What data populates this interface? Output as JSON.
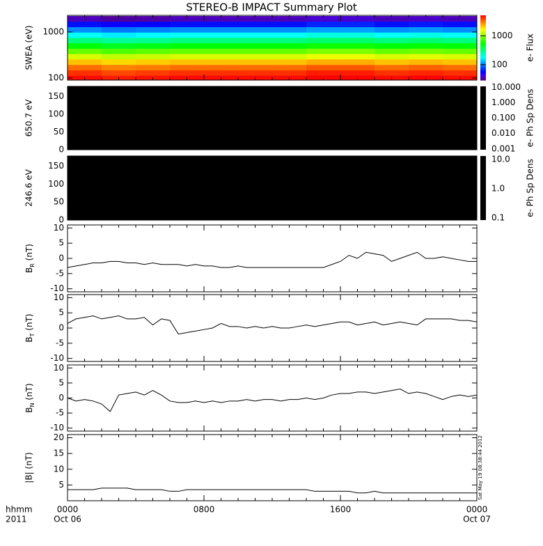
{
  "chart_data": {
    "type": "multi-panel",
    "title": "STEREO-B IMPACT Summary Plot",
    "corner_labels": [
      "hhmm",
      "2011"
    ],
    "timestamp": "Sat May 19 08:38:44 2012",
    "xlim": [
      0,
      24
    ],
    "xticks": [
      {
        "value": 0,
        "label": "0000"
      },
      {
        "value": 8,
        "label": "0800"
      },
      {
        "value": 16,
        "label": "1600"
      },
      {
        "value": 24,
        "label": "0000"
      }
    ],
    "date_labels": [
      {
        "value": 0,
        "label": "Oct 06"
      },
      {
        "value": 24,
        "label": "Oct 07"
      }
    ],
    "x": [
      0,
      0.5,
      1,
      1.5,
      2,
      2.5,
      3,
      3.5,
      4,
      4.5,
      5,
      5.5,
      6,
      6.5,
      7,
      7.5,
      8,
      8.5,
      9,
      9.5,
      10,
      10.5,
      11,
      11.5,
      12,
      12.5,
      13,
      13.5,
      14,
      14.5,
      15,
      15.5,
      16,
      16.5,
      17,
      17.5,
      18,
      18.5,
      19,
      19.5,
      20,
      20.5,
      21,
      21.5,
      22,
      22.5,
      23,
      23.5,
      24
    ],
    "panels": [
      {
        "type": "spectrogram",
        "ylabel": "SWEA (eV)",
        "ylog": true,
        "ylim": [
          90,
          2300
        ],
        "yticks": [
          100,
          1000
        ],
        "colormap": "rainbow",
        "times": [
          1,
          3,
          5,
          7,
          9,
          11,
          13,
          15,
          17,
          19,
          21,
          23
        ],
        "energies": [
          100,
          130,
          170,
          225,
          295,
          385,
          505,
          660,
          865,
          1130,
          1480,
          1940
        ],
        "z": [
          [
            5000,
            4600,
            4800,
            5000,
            5000,
            5000,
            5000,
            5400,
            5400,
            5000,
            5200,
            5000
          ],
          [
            4200,
            3800,
            4000,
            4200,
            4200,
            4200,
            4200,
            4600,
            4600,
            4200,
            4400,
            4200
          ],
          [
            3200,
            2900,
            3000,
            3200,
            3200,
            3200,
            3200,
            3500,
            3500,
            3200,
            3400,
            3200
          ],
          [
            2200,
            2000,
            2100,
            2200,
            2200,
            2200,
            2200,
            2400,
            2400,
            2200,
            2300,
            2200
          ],
          [
            1400,
            1260,
            1330,
            1400,
            1400,
            1400,
            1400,
            1540,
            1540,
            1400,
            1470,
            1400
          ],
          [
            850,
            760,
            810,
            850,
            850,
            850,
            850,
            940,
            940,
            850,
            890,
            850
          ],
          [
            520,
            470,
            490,
            520,
            520,
            520,
            520,
            570,
            570,
            520,
            550,
            520
          ],
          [
            310,
            280,
            290,
            310,
            310,
            310,
            310,
            340,
            340,
            310,
            330,
            310
          ],
          [
            180,
            160,
            170,
            180,
            180,
            180,
            180,
            200,
            200,
            180,
            190,
            180
          ],
          [
            105,
            95,
            100,
            105,
            105,
            105,
            105,
            115,
            115,
            105,
            110,
            105
          ],
          [
            60,
            54,
            57,
            60,
            60,
            60,
            60,
            66,
            66,
            60,
            63,
            60
          ],
          [
            35,
            32,
            33,
            35,
            35,
            35,
            35,
            38,
            38,
            35,
            37,
            35
          ]
        ],
        "colorbar": {
          "label": "e- Flux",
          "log": true,
          "lim": [
            29,
            5200
          ],
          "ticks": [
            100,
            1000
          ]
        }
      },
      {
        "type": "pitch-angle",
        "ylabel": "650.7 eV",
        "ylim": [
          0,
          178
        ],
        "yticks": [
          0,
          50,
          100,
          150
        ],
        "color": "#000000",
        "colorbar": {
          "label": "e- Ph Sp Dens",
          "log": true,
          "lim": [
            0.00088,
            11.5
          ],
          "color": "#000000",
          "ticks": [
            {
              "value": 10,
              "label": "10.000"
            },
            {
              "value": 1,
              "label": "1.000"
            },
            {
              "value": 0.1,
              "label": "0.100"
            },
            {
              "value": 0.01,
              "label": "0.010"
            },
            {
              "value": 0.001,
              "label": "0.001"
            }
          ]
        }
      },
      {
        "type": "pitch-angle",
        "ylabel": "246.6 eV",
        "ylim": [
          0,
          178
        ],
        "yticks": [
          0,
          50,
          100,
          150
        ],
        "color": "#000000",
        "colorbar": {
          "label": "e- Ph Sp Dens",
          "log": true,
          "lim": [
            0.085,
            13
          ],
          "color": "#000000",
          "ticks": [
            {
              "value": 10,
              "label": "10.0"
            },
            {
              "value": 1,
              "label": "1.0"
            },
            {
              "value": 0.1,
              "label": "0.1"
            }
          ]
        }
      },
      {
        "type": "line",
        "ylabel": {
          "base": "B",
          "sub": "R",
          "unit": "(nT)"
        },
        "ylim": [
          -11,
          11
        ],
        "yticks": [
          -10,
          -5,
          0,
          5,
          10
        ],
        "series": [
          {
            "color": "#000000",
            "values": [
              -3,
              -2.5,
              -2,
              -1.5,
              -1.5,
              -1,
              -1,
              -1.5,
              -1.5,
              -2,
              -1.5,
              -2,
              -2,
              -2,
              -2.5,
              -2,
              -2.5,
              -2.5,
              -3,
              -3,
              -2.5,
              -3,
              -3,
              -3,
              -3,
              -3,
              -3,
              -3,
              -3,
              -3,
              -3,
              -2,
              -1,
              1,
              0,
              2,
              1.5,
              1,
              -1,
              0,
              1,
              2,
              0,
              0,
              0.5,
              0,
              -0.5,
              -1,
              -1
            ]
          }
        ]
      },
      {
        "type": "line",
        "ylabel": {
          "base": "B",
          "sub": "T",
          "unit": "(nT)"
        },
        "ylim": [
          -11,
          11
        ],
        "yticks": [
          -10,
          -5,
          0,
          5,
          10
        ],
        "series": [
          {
            "color": "#000000",
            "values": [
              1.5,
              3,
              3.5,
              4,
              3,
              3.5,
              4,
              3,
              3,
              3.5,
              1,
              3,
              2.5,
              -2,
              -1.5,
              -1,
              -0.5,
              0,
              1.5,
              0.5,
              0.5,
              0,
              0.5,
              0,
              0.5,
              0,
              0,
              0.5,
              1,
              0.5,
              1,
              1.5,
              2,
              2,
              1,
              1.5,
              2,
              1,
              1.5,
              2,
              1.5,
              1,
              3,
              3,
              3,
              3,
              2.5,
              2.5,
              2
            ]
          }
        ]
      },
      {
        "type": "line",
        "ylabel": {
          "base": "B",
          "sub": "N",
          "unit": "(nT)"
        },
        "ylim": [
          -11,
          11
        ],
        "yticks": [
          -10,
          -5,
          0,
          5,
          10
        ],
        "series": [
          {
            "color": "#000000",
            "values": [
              0,
              -1,
              -0.5,
              -1,
              -2,
              -4.5,
              1,
              1.5,
              2,
              1,
              2.5,
              1,
              -1,
              -1.5,
              -1.5,
              -1,
              -1.5,
              -1,
              -1.5,
              -1,
              -1,
              -0.5,
              -1,
              -0.5,
              -0.5,
              -1,
              -0.5,
              -0.5,
              0,
              -0.5,
              0,
              1,
              1.5,
              1.5,
              2,
              2,
              1.5,
              2,
              2.5,
              3,
              1.5,
              2,
              1.5,
              0.5,
              -0.5,
              0.5,
              1,
              0.5,
              1
            ]
          }
        ]
      },
      {
        "type": "line",
        "ylabel": "|B| (nT)",
        "ylim": [
          0,
          21
        ],
        "yticks": [
          5,
          10,
          15,
          20
        ],
        "series": [
          {
            "color": "#000000",
            "values": [
              3.5,
              3.5,
              3.5,
              3.5,
              4,
              4,
              4,
              4,
              3.5,
              3.5,
              3.5,
              3.5,
              3,
              3,
              3.5,
              3.5,
              3.5,
              3.5,
              3.5,
              3.5,
              3.5,
              3.5,
              3.5,
              3.5,
              3.5,
              3.5,
              3.5,
              3.5,
              3.5,
              3,
              3,
              3,
              3,
              3,
              2.5,
              2.5,
              3,
              2.5,
              2.5,
              2.5,
              2.5,
              2.5,
              2.5,
              2.5,
              2.5,
              2.5,
              2.5,
              2.5,
              2.5
            ]
          }
        ]
      }
    ]
  }
}
